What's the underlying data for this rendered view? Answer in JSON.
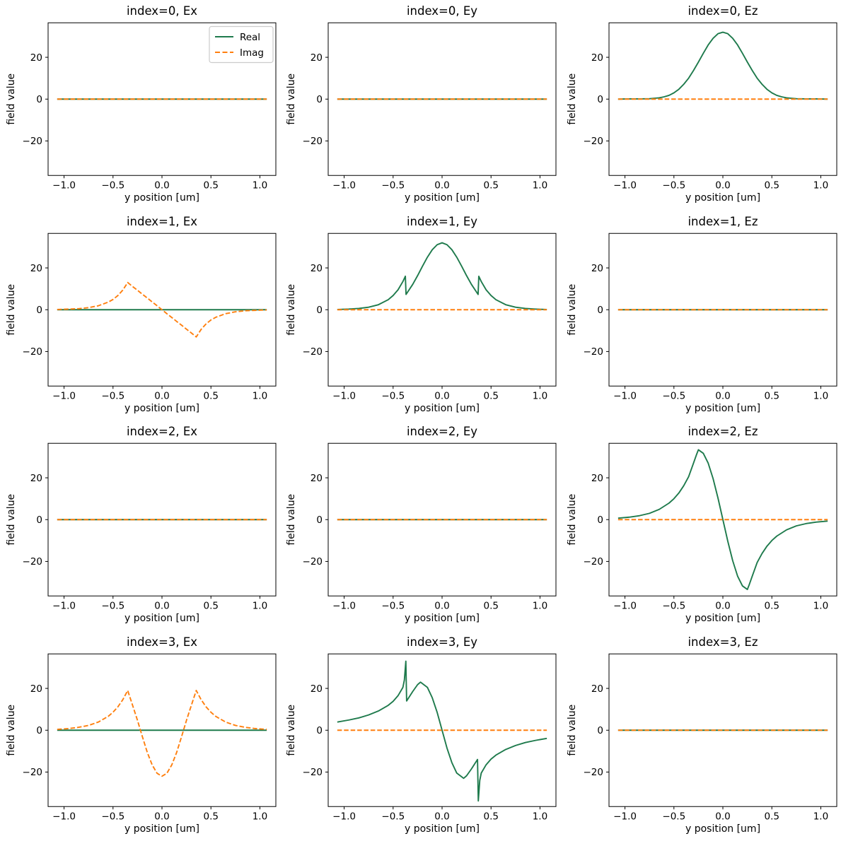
{
  "figure": {
    "background": "#ffffff",
    "real_color": "#1e7a4c",
    "imag_color": "#ff7f0e",
    "spine_color": "#000000",
    "legend_border_color": "#cccccc",
    "legend_labels": {
      "real": "Real",
      "imag": "Imag"
    }
  },
  "axes_defaults": {
    "xlabel": "y position [um]",
    "ylabel": "field value",
    "xlim": [
      -1.163,
      1.163
    ],
    "ylim": [
      -36.5,
      36.5
    ],
    "xticks": [
      -1.0,
      -0.5,
      0.0,
      0.5,
      1.0
    ],
    "yticks": [
      -20,
      0,
      20
    ],
    "xtick_labels": [
      "−1.0",
      "−0.5",
      "0.0",
      "0.5",
      "1.0"
    ],
    "ytick_labels": [
      "−20",
      "0",
      "20"
    ]
  },
  "chart_data": [
    {
      "type": "line",
      "title": "index=0, Ex",
      "legend": true,
      "xlabel": "y position [um]",
      "ylabel": "field value",
      "series": [
        {
          "name": "Real",
          "style": "solid",
          "color_key": "real",
          "x": [
            -1.07,
            1.07
          ],
          "y": [
            0,
            0
          ]
        },
        {
          "name": "Imag",
          "style": "dashed",
          "color_key": "imag",
          "x": [
            -1.07,
            1.07
          ],
          "y": [
            0,
            0
          ]
        }
      ]
    },
    {
      "type": "line",
      "title": "index=0, Ey",
      "legend": false,
      "xlabel": "y position [um]",
      "ylabel": "field value",
      "series": [
        {
          "name": "Real",
          "style": "solid",
          "color_key": "real",
          "x": [
            -1.07,
            1.07
          ],
          "y": [
            0,
            0
          ]
        },
        {
          "name": "Imag",
          "style": "dashed",
          "color_key": "imag",
          "x": [
            -1.07,
            1.07
          ],
          "y": [
            0,
            0
          ]
        }
      ]
    },
    {
      "type": "line",
      "title": "index=0, Ez",
      "legend": false,
      "xlabel": "y position [um]",
      "ylabel": "field value",
      "series": [
        {
          "name": "Real",
          "style": "solid",
          "color_key": "real",
          "x": [
            -1.07,
            -0.95,
            -0.85,
            -0.75,
            -0.65,
            -0.6,
            -0.55,
            -0.5,
            -0.45,
            -0.4,
            -0.35,
            -0.3,
            -0.25,
            -0.2,
            -0.15,
            -0.1,
            -0.05,
            0,
            0.05,
            0.1,
            0.15,
            0.2,
            0.25,
            0.3,
            0.35,
            0.4,
            0.45,
            0.5,
            0.55,
            0.6,
            0.65,
            0.75,
            0.85,
            0.95,
            1.07
          ],
          "y": [
            0,
            0.1,
            0.1,
            0.2,
            0.6,
            1.1,
            1.8,
            3,
            4.7,
            7.1,
            10,
            13.7,
            17.7,
            21.9,
            25.9,
            29.1,
            31.3,
            32,
            31.3,
            29.1,
            25.9,
            21.9,
            17.7,
            13.7,
            10,
            7.1,
            4.7,
            3,
            1.8,
            1.1,
            0.6,
            0.2,
            0.1,
            0.1,
            0
          ]
        },
        {
          "name": "Imag",
          "style": "dashed",
          "color_key": "imag",
          "x": [
            -1.07,
            1.07
          ],
          "y": [
            0,
            0
          ]
        }
      ]
    },
    {
      "type": "line",
      "title": "index=1, Ex",
      "legend": false,
      "xlabel": "y position [um]",
      "ylabel": "field value",
      "series": [
        {
          "name": "Real",
          "style": "solid",
          "color_key": "real",
          "x": [
            -1.07,
            1.07
          ],
          "y": [
            0,
            0
          ]
        },
        {
          "name": "Imag",
          "style": "dashed",
          "color_key": "imag",
          "x": [
            -1.07,
            -0.95,
            -0.85,
            -0.75,
            -0.65,
            -0.55,
            -0.5,
            -0.45,
            -0.4,
            -0.35,
            -0.3,
            -0.25,
            -0.2,
            -0.15,
            -0.1,
            -0.05,
            0,
            0.05,
            0.1,
            0.15,
            0.2,
            0.25,
            0.3,
            0.35,
            0.4,
            0.45,
            0.5,
            0.55,
            0.65,
            0.75,
            0.85,
            0.95,
            1.07
          ],
          "y": [
            0.1,
            0.3,
            0.5,
            1,
            1.9,
            3.6,
            4.9,
            6.8,
            9.4,
            13,
            11.1,
            9.3,
            7.4,
            5.6,
            3.7,
            1.9,
            0,
            -1.9,
            -3.7,
            -5.6,
            -7.4,
            -9.3,
            -11.1,
            -13,
            -9.4,
            -6.8,
            -4.9,
            -3.6,
            -1.9,
            -1,
            -0.5,
            -0.3,
            -0.1
          ]
        }
      ]
    },
    {
      "type": "line",
      "title": "index=1, Ey",
      "legend": false,
      "xlabel": "y position [um]",
      "ylabel": "field value",
      "series": [
        {
          "name": "Real",
          "style": "solid",
          "color_key": "real",
          "x": [
            -1.07,
            -0.95,
            -0.85,
            -0.75,
            -0.65,
            -0.55,
            -0.5,
            -0.45,
            -0.4,
            -0.375,
            -0.368,
            -0.3,
            -0.25,
            -0.2,
            -0.15,
            -0.1,
            -0.05,
            0,
            0.05,
            0.1,
            0.15,
            0.2,
            0.25,
            0.3,
            0.368,
            0.375,
            0.4,
            0.45,
            0.5,
            0.55,
            0.65,
            0.75,
            0.85,
            0.95,
            1.07
          ],
          "y": [
            0.1,
            0.3,
            0.6,
            1.2,
            2.4,
            4.8,
            6.8,
            9.5,
            13.5,
            16,
            7.3,
            12.1,
            16.3,
            20.8,
            25.1,
            28.7,
            31.1,
            32,
            31.1,
            28.7,
            25.1,
            20.8,
            16.3,
            12.1,
            7.3,
            16,
            13.5,
            9.5,
            6.8,
            4.8,
            2.4,
            1.2,
            0.6,
            0.3,
            0.1
          ]
        },
        {
          "name": "Imag",
          "style": "dashed",
          "color_key": "imag",
          "x": [
            -1.07,
            1.07
          ],
          "y": [
            0,
            0
          ]
        }
      ]
    },
    {
      "type": "line",
      "title": "index=1, Ez",
      "legend": false,
      "xlabel": "y position [um]",
      "ylabel": "field value",
      "series": [
        {
          "name": "Real",
          "style": "solid",
          "color_key": "real",
          "x": [
            -1.07,
            1.07
          ],
          "y": [
            0,
            0
          ]
        },
        {
          "name": "Imag",
          "style": "dashed",
          "color_key": "imag",
          "x": [
            -1.07,
            1.07
          ],
          "y": [
            0,
            0
          ]
        }
      ]
    },
    {
      "type": "line",
      "title": "index=2, Ex",
      "legend": false,
      "xlabel": "y position [um]",
      "ylabel": "field value",
      "series": [
        {
          "name": "Real",
          "style": "solid",
          "color_key": "real",
          "x": [
            -1.07,
            1.07
          ],
          "y": [
            0,
            0
          ]
        },
        {
          "name": "Imag",
          "style": "dashed",
          "color_key": "imag",
          "x": [
            -1.07,
            1.07
          ],
          "y": [
            0,
            0
          ]
        }
      ]
    },
    {
      "type": "line",
      "title": "index=2, Ey",
      "legend": false,
      "xlabel": "y position [um]",
      "ylabel": "field value",
      "series": [
        {
          "name": "Real",
          "style": "solid",
          "color_key": "real",
          "x": [
            -1.07,
            1.07
          ],
          "y": [
            0,
            0
          ]
        },
        {
          "name": "Imag",
          "style": "dashed",
          "color_key": "imag",
          "x": [
            -1.07,
            1.07
          ],
          "y": [
            0,
            0
          ]
        }
      ]
    },
    {
      "type": "line",
      "title": "index=2, Ez",
      "legend": false,
      "xlabel": "y position [um]",
      "ylabel": "field value",
      "series": [
        {
          "name": "Real",
          "style": "solid",
          "color_key": "real",
          "x": [
            -1.07,
            -0.95,
            -0.85,
            -0.75,
            -0.65,
            -0.55,
            -0.5,
            -0.45,
            -0.4,
            -0.35,
            -0.3,
            -0.27,
            -0.25,
            -0.2,
            -0.15,
            -0.1,
            -0.05,
            0,
            0.05,
            0.1,
            0.15,
            0.2,
            0.25,
            0.27,
            0.3,
            0.35,
            0.4,
            0.45,
            0.5,
            0.55,
            0.65,
            0.75,
            0.85,
            0.95,
            1.07
          ],
          "y": [
            0.7,
            1.2,
            1.9,
            3,
            4.9,
            7.9,
            10,
            12.7,
            16.2,
            20.5,
            27,
            31,
            33.4,
            31.7,
            27,
            19.6,
            10.3,
            0,
            -10.3,
            -19.6,
            -27,
            -31.7,
            -33.4,
            -31,
            -27,
            -20.5,
            -16.2,
            -12.7,
            -10,
            -7.9,
            -4.9,
            -3,
            -1.9,
            -1.2,
            -0.7
          ]
        },
        {
          "name": "Imag",
          "style": "dashed",
          "color_key": "imag",
          "x": [
            -1.07,
            1.07
          ],
          "y": [
            0,
            0
          ]
        }
      ]
    },
    {
      "type": "line",
      "title": "index=3, Ex",
      "legend": false,
      "xlabel": "y position [um]",
      "ylabel": "field value",
      "series": [
        {
          "name": "Real",
          "style": "solid",
          "color_key": "real",
          "x": [
            -1.07,
            1.07
          ],
          "y": [
            0,
            0
          ]
        },
        {
          "name": "Imag",
          "style": "dashed",
          "color_key": "imag",
          "x": [
            -1.07,
            -0.95,
            -0.85,
            -0.75,
            -0.65,
            -0.55,
            -0.5,
            -0.45,
            -0.4,
            -0.35,
            -0.3,
            -0.25,
            -0.22,
            -0.2,
            -0.15,
            -0.1,
            -0.05,
            0,
            0.05,
            0.1,
            0.15,
            0.2,
            0.22,
            0.25,
            0.3,
            0.35,
            0.4,
            0.45,
            0.5,
            0.55,
            0.65,
            0.75,
            0.85,
            0.95,
            1.07
          ],
          "y": [
            0.4,
            0.8,
            1.4,
            2.3,
            3.9,
            6.6,
            8.6,
            11.2,
            14.6,
            19,
            11.9,
            4.7,
            0,
            -3.1,
            -10.6,
            -16.6,
            -20.6,
            -22,
            -20.6,
            -16.6,
            -10.6,
            -3.1,
            0,
            4.7,
            11.9,
            19,
            14.6,
            11.2,
            8.6,
            6.6,
            3.9,
            2.3,
            1.4,
            0.8,
            0.4
          ]
        }
      ]
    },
    {
      "type": "line",
      "title": "index=3, Ey",
      "legend": false,
      "xlabel": "y position [um]",
      "ylabel": "field value",
      "series": [
        {
          "name": "Real",
          "style": "solid",
          "color_key": "real",
          "x": [
            -1.07,
            -0.95,
            -0.85,
            -0.75,
            -0.65,
            -0.55,
            -0.5,
            -0.45,
            -0.4,
            -0.385,
            -0.37,
            -0.362,
            -0.3,
            -0.25,
            -0.22,
            -0.15,
            -0.1,
            -0.05,
            0,
            0.05,
            0.1,
            0.15,
            0.22,
            0.25,
            0.3,
            0.362,
            0.37,
            0.385,
            0.4,
            0.45,
            0.5,
            0.55,
            0.65,
            0.75,
            0.85,
            0.95,
            1.07
          ],
          "y": [
            3.9,
            4.9,
            5.9,
            7.3,
            9.2,
            11.9,
            13.8,
            16.5,
            20.5,
            24,
            33,
            14,
            18.5,
            21.8,
            23,
            20.5,
            15.5,
            8.5,
            0,
            -8.5,
            -15.5,
            -20.5,
            -23,
            -21.8,
            -18.5,
            -14,
            -33.8,
            -24,
            -20.5,
            -16.5,
            -13.8,
            -11.9,
            -9.2,
            -7.3,
            -5.9,
            -4.9,
            -3.9
          ]
        },
        {
          "name": "Imag",
          "style": "dashed",
          "color_key": "imag",
          "x": [
            -1.07,
            1.07
          ],
          "y": [
            0,
            0
          ]
        }
      ]
    },
    {
      "type": "line",
      "title": "index=3, Ez",
      "legend": false,
      "xlabel": "y position [um]",
      "ylabel": "field value",
      "series": [
        {
          "name": "Real",
          "style": "solid",
          "color_key": "real",
          "x": [
            -1.07,
            1.07
          ],
          "y": [
            0,
            0
          ]
        },
        {
          "name": "Imag",
          "style": "dashed",
          "color_key": "imag",
          "x": [
            -1.07,
            1.07
          ],
          "y": [
            0,
            0
          ]
        }
      ]
    }
  ]
}
